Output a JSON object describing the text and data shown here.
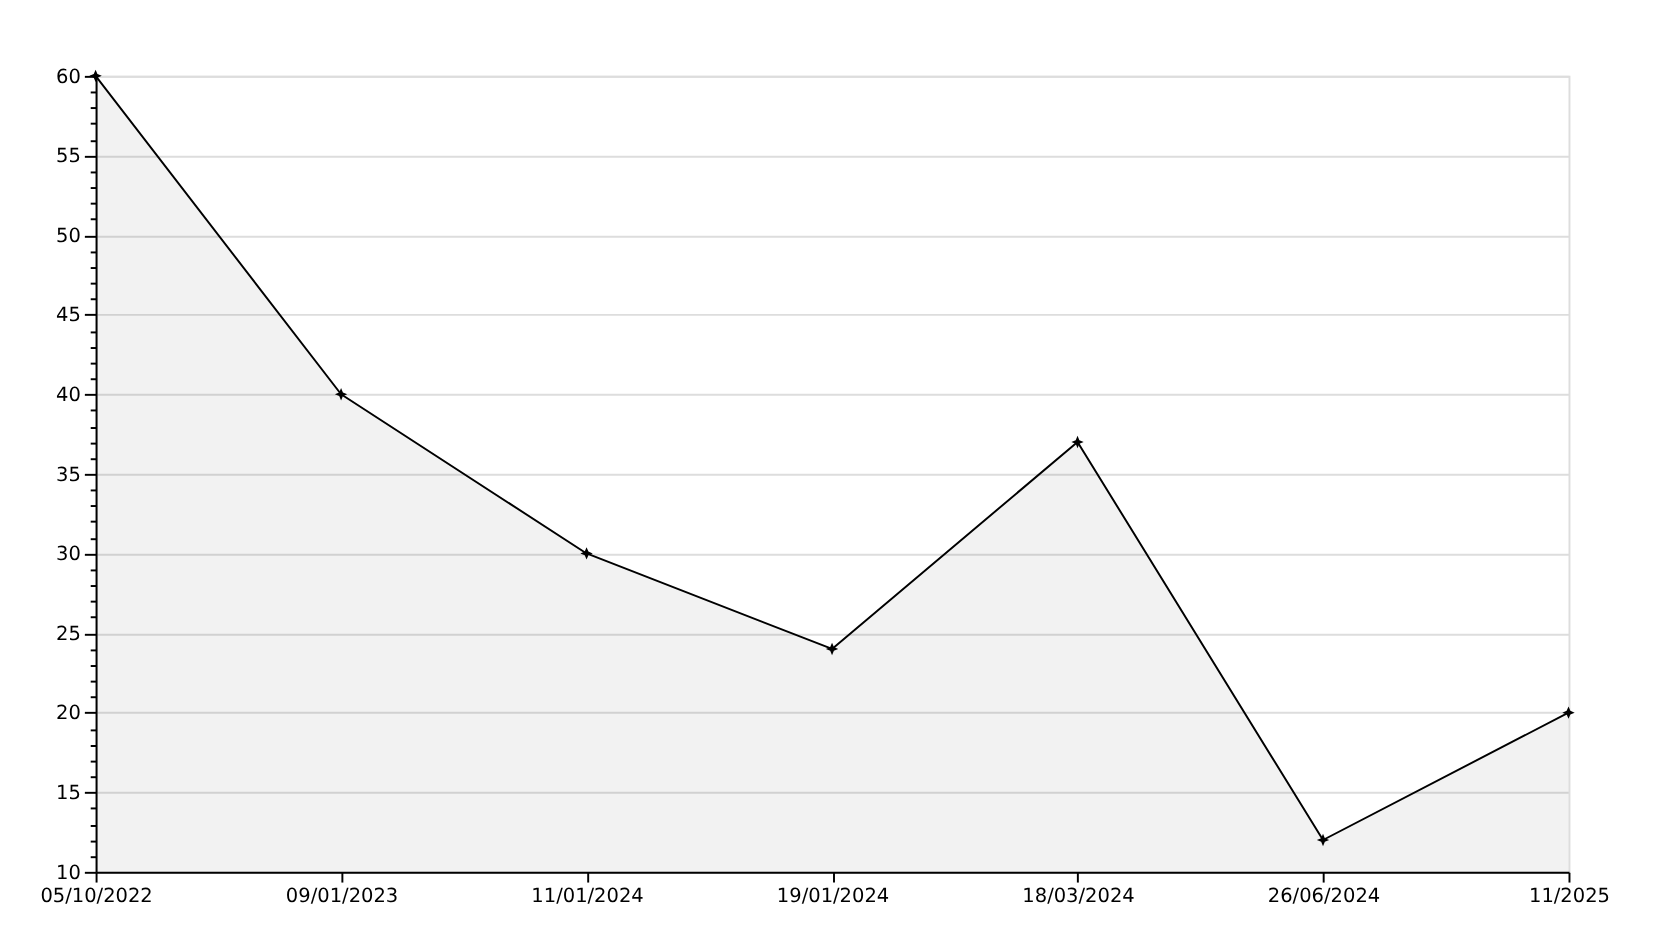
{
  "chart_data": {
    "type": "area",
    "categories": [
      "05/10/2022",
      "09/01/2023",
      "11/01/2024",
      "19/01/2024",
      "18/03/2024",
      "26/06/2024",
      "11/2025"
    ],
    "series": [
      {
        "color": "#000000",
        "values": [
          60,
          40,
          30,
          24,
          37,
          12,
          20
        ]
      }
    ],
    "ylim": [
      10,
      60
    ],
    "yticks": [
      10,
      {
        "value": 11,
        "label": null
      },
      {
        "value": 12,
        "label": null
      },
      {
        "value": 13,
        "label": null
      },
      {
        "value": 14,
        "label": null
      },
      15,
      {
        "value": 16,
        "label": null
      },
      {
        "value": 17,
        "label": null
      },
      {
        "value": 18,
        "label": null
      },
      {
        "value": 19,
        "label": null
      },
      20,
      {
        "value": 21,
        "label": null
      },
      {
        "value": 22,
        "label": null
      },
      {
        "value": 23,
        "label": null
      },
      {
        "value": 24,
        "label": null
      },
      25,
      {
        "value": 26,
        "label": null
      },
      {
        "value": 27,
        "label": null
      },
      {
        "value": 28,
        "label": null
      },
      {
        "value": 29,
        "label": null
      },
      30,
      {
        "value": 31,
        "label": null
      },
      {
        "value": 32,
        "label": null
      },
      {
        "value": 33,
        "label": null
      },
      {
        "value": 34,
        "label": null
      },
      35,
      {
        "value": 36,
        "label": null
      },
      {
        "value": 37,
        "label": null
      },
      {
        "value": 38,
        "label": null
      },
      {
        "value": 39,
        "label": null
      },
      40,
      {
        "value": 41,
        "label": null
      },
      {
        "value": 42,
        "label": null
      },
      {
        "value": 43,
        "label": null
      },
      {
        "value": 44,
        "label": null
      },
      45,
      {
        "value": 46,
        "label": null
      },
      {
        "value": 47,
        "label": null
      },
      {
        "value": 48,
        "label": null
      },
      {
        "value": 49,
        "label": null
      },
      50,
      {
        "value": 51,
        "label": null
      },
      {
        "value": 52,
        "label": null
      },
      {
        "value": 53,
        "label": null
      },
      {
        "value": 54,
        "label": null
      },
      55,
      {
        "value": 56,
        "label": null
      },
      {
        "value": 57,
        "label": null
      },
      {
        "value": 58,
        "label": null
      },
      {
        "value": 59,
        "label": null
      },
      60
    ],
    "grid": "y",
    "marker": "star",
    "line_style": "solid"
  }
}
